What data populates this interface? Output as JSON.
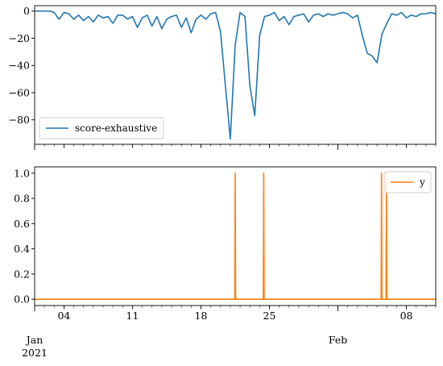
{
  "chart_data": [
    {
      "type": "line",
      "series": [
        {
          "name": "score-exhaustive",
          "color": "#1f77b4",
          "x": [
            "2021-01-01",
            "2021-01-01T12:00",
            "2021-01-02",
            "2021-01-02T12:00",
            "2021-01-03",
            "2021-01-03T12:00",
            "2021-01-04",
            "2021-01-04T12:00",
            "2021-01-05",
            "2021-01-05T12:00",
            "2021-01-06",
            "2021-01-06T12:00",
            "2021-01-07",
            "2021-01-07T12:00",
            "2021-01-08",
            "2021-01-08T12:00",
            "2021-01-09",
            "2021-01-09T12:00",
            "2021-01-10",
            "2021-01-10T12:00",
            "2021-01-11",
            "2021-01-11T12:00",
            "2021-01-12",
            "2021-01-12T12:00",
            "2021-01-13",
            "2021-01-13T12:00",
            "2021-01-14",
            "2021-01-14T12:00",
            "2021-01-15",
            "2021-01-15T12:00",
            "2021-01-16",
            "2021-01-16T12:00",
            "2021-01-17",
            "2021-01-17T12:00",
            "2021-01-18",
            "2021-01-18T12:00",
            "2021-01-19",
            "2021-01-19T12:00",
            "2021-01-20",
            "2021-01-20T12:00",
            "2021-01-21",
            "2021-01-21T12:00",
            "2021-01-22",
            "2021-01-22T12:00",
            "2021-01-23",
            "2021-01-23T12:00",
            "2021-01-24",
            "2021-01-24T12:00",
            "2021-01-25",
            "2021-01-25T12:00",
            "2021-01-26",
            "2021-01-26T12:00",
            "2021-01-27",
            "2021-01-27T12:00",
            "2021-01-28",
            "2021-01-28T12:00",
            "2021-01-29",
            "2021-01-29T12:00",
            "2021-01-30",
            "2021-01-30T12:00",
            "2021-01-31",
            "2021-01-31T12:00",
            "2021-02-01",
            "2021-02-01T12:00",
            "2021-02-02",
            "2021-02-02T12:00",
            "2021-02-03",
            "2021-02-03T12:00",
            "2021-02-04",
            "2021-02-04T12:00",
            "2021-02-05",
            "2021-02-05T12:00",
            "2021-02-06",
            "2021-02-06T12:00",
            "2021-02-07",
            "2021-02-07T12:00",
            "2021-02-08",
            "2021-02-08T12:00",
            "2021-02-09",
            "2021-02-09T12:00",
            "2021-02-10",
            "2021-02-10T12:00",
            "2021-02-11"
          ],
          "values": [
            0,
            0,
            0,
            0,
            -1,
            -6,
            -1,
            -2,
            -6,
            -3,
            -7,
            -4,
            -8,
            -3,
            -5,
            -4,
            -9,
            -3,
            -3,
            -6,
            -4,
            -12,
            -5,
            -3,
            -11,
            -4,
            -13,
            -6,
            -4,
            -3,
            -12,
            -5,
            -16,
            -6,
            -3,
            -6,
            -2,
            -1,
            -15,
            -55,
            -94,
            -25,
            -1,
            -4,
            -55,
            -77,
            -18,
            -4,
            -3,
            -1,
            -7,
            -4,
            -10,
            -4,
            -3,
            -2,
            -8,
            -3,
            -2,
            -4,
            -2,
            -3,
            -2,
            -1,
            -2,
            -5,
            -3,
            -18,
            -31,
            -33,
            -38,
            -17,
            -9,
            -2,
            -3,
            -1,
            -5,
            -3,
            -4,
            -2,
            -2,
            -1,
            -2
          ]
        }
      ],
      "ylim": [
        -98,
        4
      ],
      "yticks": [
        0,
        -20,
        -40,
        -60,
        -80
      ],
      "yticklabels": [
        "0",
        "−20",
        "−40",
        "−60",
        "−80"
      ],
      "xlim": [
        "2021-01-01",
        "2021-02-11"
      ],
      "legend_position": "lower-left",
      "grid": false
    },
    {
      "type": "line",
      "series": [
        {
          "name": "y",
          "color": "#ff7f0e",
          "x": [
            "2021-01-01",
            "2021-01-21T11:00",
            "2021-01-21T12:00",
            "2021-01-21T13:00",
            "2021-01-24T09:00",
            "2021-01-24T10:00",
            "2021-01-24T11:00",
            "2021-02-05T10:00",
            "2021-02-05T11:00",
            "2021-02-05T12:00",
            "2021-02-05T22:00",
            "2021-02-05T23:00",
            "2021-02-06T00:00",
            "2021-02-11"
          ],
          "values": [
            0,
            0,
            1,
            0,
            0,
            1,
            0,
            0,
            1,
            0,
            0,
            1,
            0,
            0
          ]
        }
      ],
      "ylim": [
        -0.05,
        1.05
      ],
      "yticks": [
        0.0,
        0.2,
        0.4,
        0.6,
        0.8,
        1.0
      ],
      "yticklabels": [
        "0.0",
        "0.2",
        "0.4",
        "0.6",
        "0.8",
        "1.0"
      ],
      "xlim": [
        "2021-01-01",
        "2021-02-11"
      ],
      "xticks": [
        "2021-01-04",
        "2021-01-11",
        "2021-01-18",
        "2021-01-25",
        "2021-02-08"
      ],
      "xticklabels": [
        "04",
        "11",
        "18",
        "25",
        "08"
      ],
      "xmonthticks": [
        "2021-01-01",
        "2021-02-01"
      ],
      "xmonthlabels": [
        "Jan",
        "Feb"
      ],
      "xyearlabel": "2021",
      "legend_position": "upper-right",
      "grid": false
    }
  ]
}
